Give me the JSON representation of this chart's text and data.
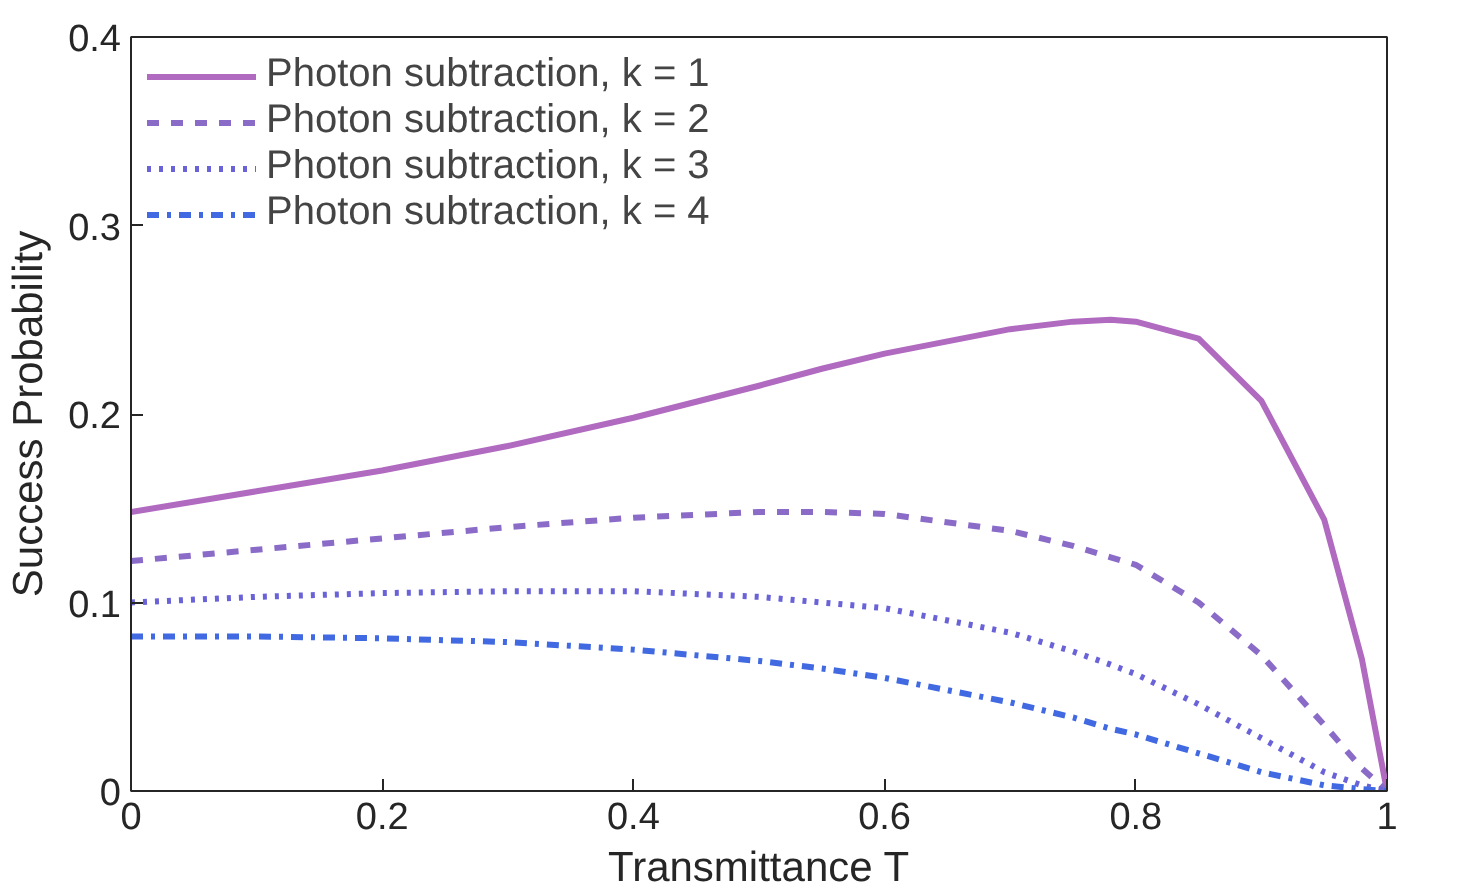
{
  "chart_data": {
    "type": "line",
    "xlabel": "Transmittance T",
    "ylabel": "Success Probability",
    "x": [
      0,
      0.1,
      0.2,
      0.3,
      0.4,
      0.5,
      0.55,
      0.6,
      0.7,
      0.75,
      0.78,
      0.8,
      0.85,
      0.9,
      0.95,
      0.98,
      1
    ],
    "series": [
      {
        "name": "Photon subtraction, k = 1",
        "color": "#b06ac0",
        "line_style": "solid",
        "values": [
          0.148,
          0.159,
          0.17,
          0.183,
          0.198,
          0.215,
          0.224,
          0.232,
          0.245,
          0.249,
          0.25,
          0.249,
          0.24,
          0.207,
          0.144,
          0.07,
          0
        ]
      },
      {
        "name": "Photon subtraction, k = 2",
        "color": "#8a6cc8",
        "line_style": "dashed",
        "values": [
          0.122,
          0.128,
          0.134,
          0.14,
          0.145,
          0.148,
          0.148,
          0.147,
          0.138,
          0.13,
          0.124,
          0.12,
          0.1,
          0.072,
          0.035,
          0.012,
          0
        ]
      },
      {
        "name": "Photon subtraction, k = 3",
        "color": "#6a63d8",
        "line_style": "dotted",
        "values": [
          0.1,
          0.103,
          0.105,
          0.106,
          0.106,
          0.103,
          0.1,
          0.097,
          0.084,
          0.074,
          0.067,
          0.062,
          0.046,
          0.028,
          0.01,
          0.003,
          0
        ]
      },
      {
        "name": "Photon subtraction, k = 4",
        "color": "#4169e1",
        "line_style": "dashdot",
        "values": [
          0.082,
          0.082,
          0.081,
          0.079,
          0.075,
          0.069,
          0.065,
          0.06,
          0.047,
          0.039,
          0.033,
          0.03,
          0.02,
          0.01,
          0.003,
          0.001,
          0
        ]
      }
    ],
    "xlim": [
      0,
      1
    ],
    "ylim": [
      0,
      0.4
    ],
    "xticks": [
      0,
      0.2,
      0.4,
      0.6,
      0.8,
      1
    ],
    "yticks": [
      0,
      0.1,
      0.2,
      0.3,
      0.4
    ],
    "grid": false,
    "legend": "top left",
    "marker": "none"
  }
}
